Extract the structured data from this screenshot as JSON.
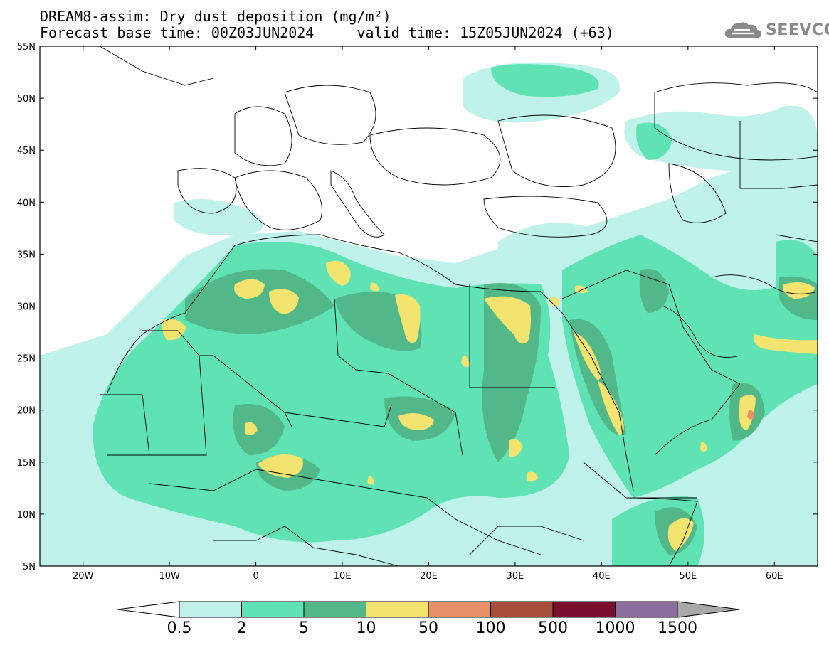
{
  "header": {
    "title": "DREAM8-assim: Dry dust deposition (mg/m²)",
    "subtitle": "Forecast base time: 00Z03JUN2024     valid time: 15Z05JUN2024 (+63)",
    "logo_text": "SEEVCCC",
    "logo_icon": "cloud-icon"
  },
  "map": {
    "lat_labels": [
      "55N",
      "50N",
      "45N",
      "40N",
      "35N",
      "30N",
      "25N",
      "20N",
      "15N",
      "10N",
      "5N"
    ],
    "lat_values": [
      55,
      50,
      45,
      40,
      35,
      30,
      25,
      20,
      15,
      10,
      5
    ],
    "lon_labels": [
      "20W",
      "10W",
      "0",
      "10E",
      "20E",
      "30E",
      "40E",
      "50E",
      "60E"
    ],
    "lon_values": [
      -20,
      -10,
      0,
      10,
      20,
      30,
      40,
      50,
      60
    ],
    "lon_range": [
      -25,
      65
    ],
    "lat_range": [
      5,
      55
    ],
    "land_color": "#ffffff",
    "border_color": "#000000"
  },
  "legend": {
    "labels": [
      "0.5",
      "2",
      "5",
      "10",
      "50",
      "100",
      "500",
      "1000",
      "1500"
    ],
    "colors": [
      "#bff2ea",
      "#5fe3b5",
      "#52b88a",
      "#f2e46e",
      "#e8906a",
      "#a84c3c",
      "#7a0e2e",
      "#8c6d9e",
      "#a8a8a8"
    ],
    "under_color": "#ffffff"
  }
}
